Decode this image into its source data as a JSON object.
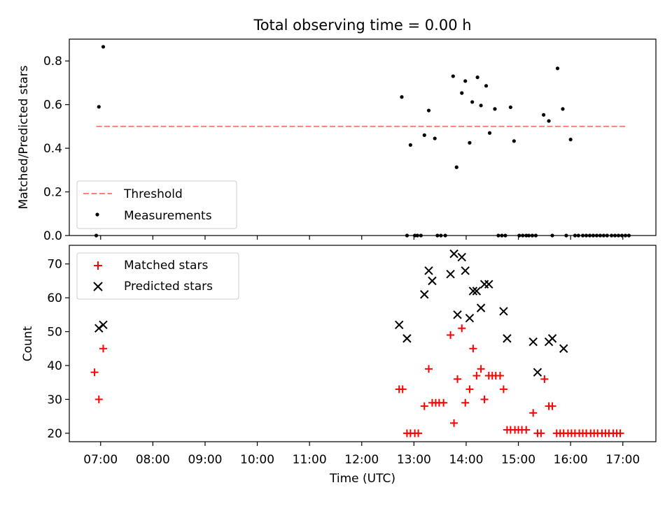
{
  "title": "Total observing time = 0.00 h",
  "chart_data": [
    {
      "type": "scatter",
      "ylabel": "Matched/Predicted stars",
      "ylim": [
        0,
        0.9
      ],
      "yticks": [
        0.0,
        0.2,
        0.4,
        0.6,
        0.8
      ],
      "ytick_labels": [
        "0.0",
        "0.2",
        "0.4",
        "0.6",
        "0.8"
      ],
      "threshold": {
        "name": "Threshold",
        "y": 0.5,
        "x_range": [
          "06:55",
          "17:05"
        ],
        "color": "#ff7f7f"
      },
      "series": [
        {
          "name": "Measurements",
          "marker": "dot",
          "color": "#000000",
          "points": [
            [
              "06:55",
              0.0
            ],
            [
              "06:58",
              0.59
            ],
            [
              "07:03",
              0.865
            ],
            [
              "12:46",
              0.635
            ],
            [
              "12:52",
              0.0
            ],
            [
              "12:56",
              0.415
            ],
            [
              "13:01",
              0.0
            ],
            [
              "13:04",
              0.0
            ],
            [
              "13:08",
              0.0
            ],
            [
              "13:12",
              0.46
            ],
            [
              "13:17",
              0.573
            ],
            [
              "13:24",
              0.445
            ],
            [
              "13:27",
              0.0
            ],
            [
              "13:31",
              0.0
            ],
            [
              "13:36",
              0.0
            ],
            [
              "13:45",
              0.73
            ],
            [
              "13:49",
              0.313
            ],
            [
              "13:55",
              0.653
            ],
            [
              "13:59",
              0.708
            ],
            [
              "14:04",
              0.425
            ],
            [
              "14:07",
              0.612
            ],
            [
              "14:13",
              0.725
            ],
            [
              "14:17",
              0.596
            ],
            [
              "14:23",
              0.686
            ],
            [
              "14:27",
              0.47
            ],
            [
              "14:33",
              0.58
            ],
            [
              "14:37",
              0.0
            ],
            [
              "14:41",
              0.0
            ],
            [
              "14:45",
              0.0
            ],
            [
              "14:51",
              0.588
            ],
            [
              "14:55",
              0.433
            ],
            [
              "15:01",
              0.0
            ],
            [
              "15:05",
              0.0
            ],
            [
              "15:09",
              0.0
            ],
            [
              "15:12",
              0.0
            ],
            [
              "15:16",
              0.0
            ],
            [
              "15:20",
              0.0
            ],
            [
              "15:29",
              0.553
            ],
            [
              "15:35",
              0.525
            ],
            [
              "15:39",
              0.0
            ],
            [
              "15:45",
              0.766
            ],
            [
              "15:51",
              0.58
            ],
            [
              "15:55",
              0.0
            ],
            [
              "16:00",
              0.44
            ],
            [
              "16:05",
              0.0
            ],
            [
              "16:09",
              0.0
            ],
            [
              "16:14",
              0.0
            ],
            [
              "16:18",
              0.0
            ],
            [
              "16:22",
              0.0
            ],
            [
              "16:26",
              0.0
            ],
            [
              "16:30",
              0.0
            ],
            [
              "16:34",
              0.0
            ],
            [
              "16:38",
              0.0
            ],
            [
              "16:42",
              0.0
            ],
            [
              "16:47",
              0.0
            ],
            [
              "16:51",
              0.0
            ],
            [
              "16:55",
              0.0
            ],
            [
              "16:59",
              0.0
            ],
            [
              "17:03",
              0.0
            ],
            [
              "17:07",
              0.0
            ]
          ]
        }
      ],
      "legend": {
        "position": "lower-left"
      }
    },
    {
      "type": "scatter",
      "xlabel": "Time (UTC)",
      "ylabel": "Count",
      "ylim": [
        17.5,
        75.5
      ],
      "yticks": [
        20,
        30,
        40,
        50,
        60,
        70
      ],
      "ytick_labels": [
        "20",
        "30",
        "40",
        "50",
        "60",
        "70"
      ],
      "xlim": [
        "06:24",
        "17:38"
      ],
      "xticks": [
        "07:00",
        "08:00",
        "09:00",
        "10:00",
        "11:00",
        "12:00",
        "13:00",
        "14:00",
        "15:00",
        "16:00",
        "17:00"
      ],
      "xtick_labels": [
        "07:00",
        "08:00",
        "09:00",
        "10:00",
        "11:00",
        "12:00",
        "13:00",
        "14:00",
        "15:00",
        "16:00",
        "17:00"
      ],
      "series": [
        {
          "name": "Matched stars",
          "marker": "plus",
          "color": "#ff0000",
          "points": [
            [
              "06:53",
              38
            ],
            [
              "06:58",
              30
            ],
            [
              "07:03",
              45
            ],
            [
              "12:43",
              33
            ],
            [
              "12:47",
              33
            ],
            [
              "12:52",
              20
            ],
            [
              "12:56",
              20
            ],
            [
              "13:01",
              20
            ],
            [
              "13:05",
              20
            ],
            [
              "13:12",
              28
            ],
            [
              "13:17",
              39
            ],
            [
              "13:21",
              29
            ],
            [
              "13:25",
              29
            ],
            [
              "13:29",
              29
            ],
            [
              "13:34",
              29
            ],
            [
              "13:42",
              49
            ],
            [
              "13:46",
              23
            ],
            [
              "13:50",
              36
            ],
            [
              "13:55",
              51
            ],
            [
              "13:59",
              29
            ],
            [
              "14:04",
              33
            ],
            [
              "14:08",
              45
            ],
            [
              "14:12",
              37
            ],
            [
              "14:17",
              39
            ],
            [
              "14:21",
              30
            ],
            [
              "14:26",
              37
            ],
            [
              "14:30",
              37
            ],
            [
              "14:34",
              37
            ],
            [
              "14:39",
              37
            ],
            [
              "14:43",
              33
            ],
            [
              "14:47",
              21
            ],
            [
              "14:51",
              21
            ],
            [
              "14:56",
              21
            ],
            [
              "15:00",
              21
            ],
            [
              "15:04",
              21
            ],
            [
              "15:09",
              21
            ],
            [
              "15:17",
              26
            ],
            [
              "15:22",
              20
            ],
            [
              "15:26",
              20
            ],
            [
              "15:30",
              36
            ],
            [
              "15:35",
              28
            ],
            [
              "15:39",
              28
            ],
            [
              "15:44",
              20
            ],
            [
              "15:48",
              20
            ],
            [
              "15:52",
              20
            ],
            [
              "15:57",
              20
            ],
            [
              "16:01",
              20
            ],
            [
              "16:05",
              20
            ],
            [
              "16:10",
              20
            ],
            [
              "16:14",
              20
            ],
            [
              "16:18",
              20
            ],
            [
              "16:23",
              20
            ],
            [
              "16:27",
              20
            ],
            [
              "16:31",
              20
            ],
            [
              "16:36",
              20
            ],
            [
              "16:40",
              20
            ],
            [
              "16:44",
              20
            ],
            [
              "16:49",
              20
            ],
            [
              "16:53",
              20
            ],
            [
              "16:57",
              20
            ]
          ]
        },
        {
          "name": "Predicted stars",
          "marker": "x",
          "color": "#000000",
          "points": [
            [
              "06:58",
              51
            ],
            [
              "07:03",
              52
            ],
            [
              "12:43",
              52
            ],
            [
              "12:52",
              48
            ],
            [
              "13:12",
              61
            ],
            [
              "13:17",
              68
            ],
            [
              "13:21",
              65
            ],
            [
              "13:42",
              67
            ],
            [
              "13:46",
              73
            ],
            [
              "13:50",
              55
            ],
            [
              "13:55",
              72
            ],
            [
              "13:59",
              68
            ],
            [
              "14:04",
              54
            ],
            [
              "14:08",
              62
            ],
            [
              "14:12",
              62
            ],
            [
              "14:17",
              57
            ],
            [
              "14:21",
              64
            ],
            [
              "14:26",
              64
            ],
            [
              "14:43",
              56
            ],
            [
              "14:47",
              48
            ],
            [
              "15:17",
              47
            ],
            [
              "15:22",
              38
            ],
            [
              "15:35",
              47
            ],
            [
              "15:39",
              48
            ],
            [
              "15:52",
              45
            ]
          ]
        }
      ],
      "legend": {
        "position": "upper-left"
      }
    }
  ]
}
